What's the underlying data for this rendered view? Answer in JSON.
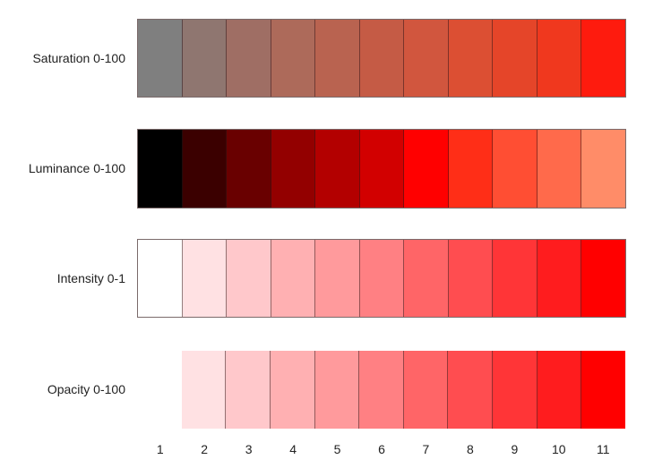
{
  "chart_data": {
    "type": "heatmap",
    "title": "",
    "xlabel": "",
    "ylabel": "",
    "categories": [
      "1",
      "2",
      "3",
      "4",
      "5",
      "6",
      "7",
      "8",
      "9",
      "10",
      "11"
    ],
    "series": [
      {
        "name": "Saturation 0-100",
        "values": [
          "#7f7f7f",
          "#8f7670",
          "#9f6e64",
          "#ad6a5a",
          "#b96350",
          "#c55b45",
          "#d1563e",
          "#dc4f33",
          "#e54529",
          "#f0381e",
          "#fe1b0e"
        ]
      },
      {
        "name": "Luminance 0-100",
        "values": [
          "#000000",
          "#3b0000",
          "#690000",
          "#930000",
          "#b30000",
          "#d20000",
          "#ff0000",
          "#ff2e17",
          "#ff4e33",
          "#ff6a4b",
          "#ff8c68"
        ]
      },
      {
        "name": "Intensity 0-1",
        "values": [
          "#ffffff",
          "#ffe1e3",
          "#ffc8cb",
          "#ffb0b2",
          "#ff9a9c",
          "#ff8083",
          "#ff6567",
          "#ff4d50",
          "#ff3537",
          "#ff1c1e",
          "#ff0000"
        ]
      },
      {
        "name": "Opacity 0-100",
        "values": [
          "transparent",
          "#ffe1e3",
          "#ffc8cb",
          "#ffb0b2",
          "#ff9a9c",
          "#ff8083",
          "#ff6567",
          "#ff4d50",
          "#ff3537",
          "#ff1c1e",
          "#ff0000"
        ]
      }
    ]
  },
  "rows": [
    {
      "label": "Saturation 0-100"
    },
    {
      "label": "Luminance 0-100"
    },
    {
      "label": "Intensity 0-1"
    },
    {
      "label": "Opacity 0-100"
    }
  ],
  "ticks": [
    "1",
    "2",
    "3",
    "4",
    "5",
    "6",
    "7",
    "8",
    "9",
    "10",
    "11"
  ]
}
